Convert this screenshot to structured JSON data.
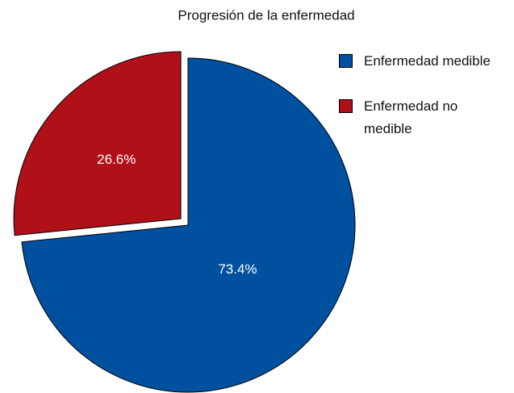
{
  "chart_data": {
    "type": "pie",
    "title": "Progresión de la enfermedad",
    "categories": [
      "Enfermedad medible",
      "Enfermedad no medible"
    ],
    "values": [
      73.4,
      26.6
    ],
    "value_labels": [
      "73.4%",
      "26.6%"
    ],
    "colors": [
      "#0050a0",
      "#b01018"
    ],
    "legend": "right"
  }
}
